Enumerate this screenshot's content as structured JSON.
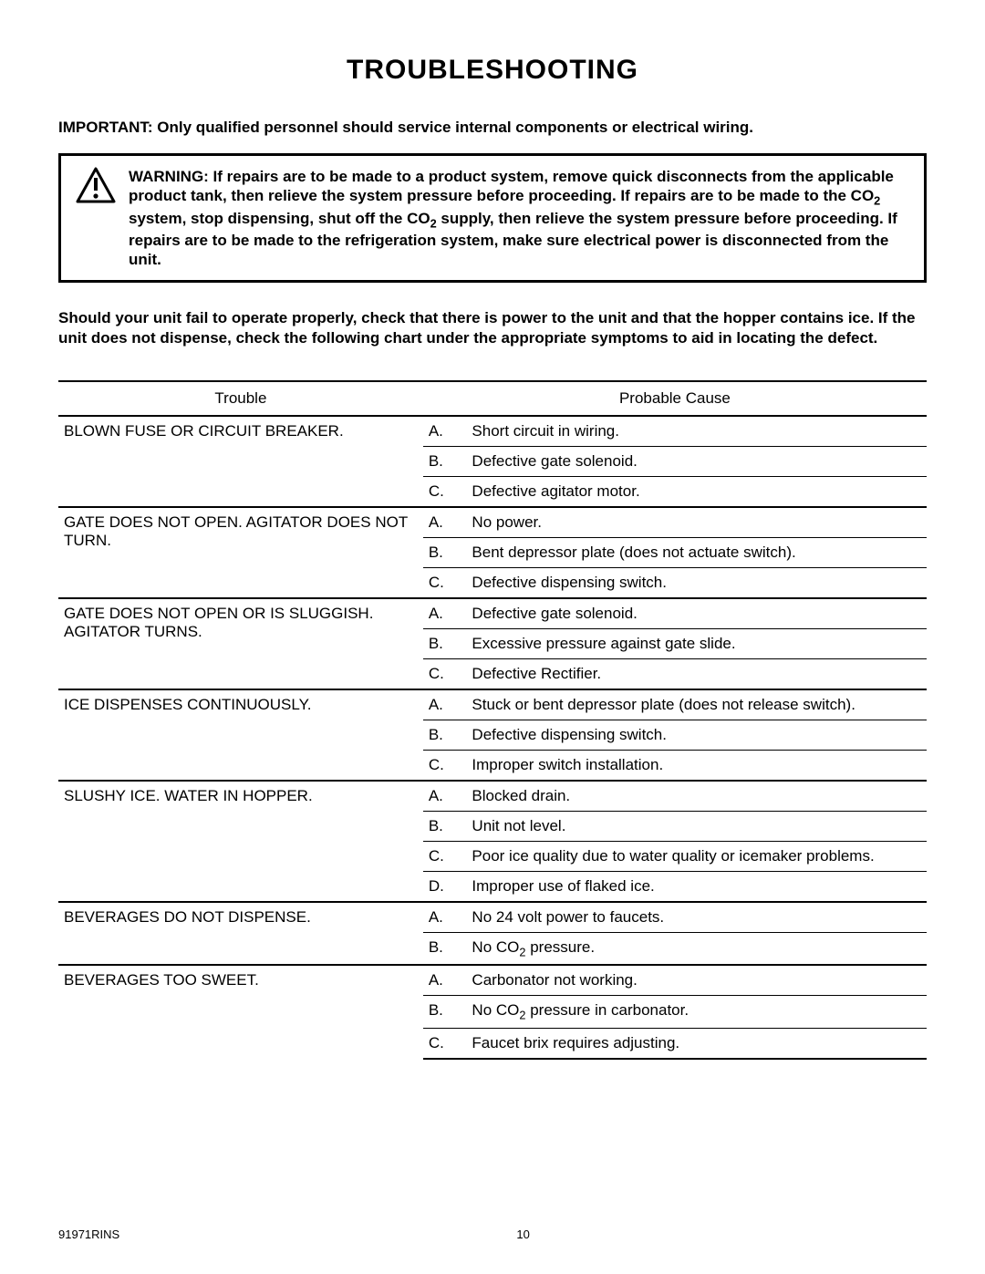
{
  "title": "TROUBLESHOOTING",
  "important_prefix": "IMPORTANT:  ",
  "important_text": "Only qualified personnel should service internal components or electrical wiring.",
  "warning_prefix": "WARNING:  ",
  "warning_text_parts": [
    "If repairs are to be made to a product system, remove quick disconnects from the applicable product tank, then relieve the system pressure before proceeding. If repairs are to be made to the CO",
    " system, stop dispensing, shut off the CO",
    " supply, then relieve the system pressure before proceeding. If repairs are to be made to the refrigeration system, make sure electrical power is disconnected from the unit."
  ],
  "body_text": "Should your unit fail to operate properly, check that there is power to the unit and that the hopper contains ice. If the unit does not dispense, check the following chart under the appropriate symptoms to aid in locating the defect.",
  "table": {
    "header_trouble": "Trouble",
    "header_cause": "Probable Cause",
    "groups": [
      {
        "trouble": "BLOWN FUSE OR CIRCUIT BREAKER.",
        "causes": [
          {
            "letter": "A.",
            "text": "Short circuit in wiring."
          },
          {
            "letter": "B.",
            "text": "Defective gate solenoid."
          },
          {
            "letter": "C.",
            "text": "Defective agitator motor."
          }
        ]
      },
      {
        "trouble": "GATE DOES NOT OPEN.  AGITATOR DOES NOT TURN.",
        "trouble_two_line": true,
        "causes": [
          {
            "letter": "A.",
            "text": "No power."
          },
          {
            "letter": "B.",
            "text": "Bent depressor plate (does not actuate switch)."
          },
          {
            "letter": "C.",
            "text": "Defective dispensing switch."
          }
        ]
      },
      {
        "trouble": "GATE DOES NOT OPEN OR IS SLUGGISH. AGITATOR TURNS.",
        "trouble_two_line": true,
        "causes": [
          {
            "letter": "A.",
            "text": "Defective gate solenoid."
          },
          {
            "letter": "B.",
            "text": "Excessive pressure against gate slide."
          },
          {
            "letter": "C.",
            "text": "Defective  Rectifier."
          }
        ]
      },
      {
        "trouble": "ICE DISPENSES CONTINUOUSLY.",
        "causes": [
          {
            "letter": "A.",
            "text": "Stuck or bent depressor plate (does not release switch)."
          },
          {
            "letter": "B.",
            "text": "Defective dispensing switch."
          },
          {
            "letter": "C.",
            "text": "Improper switch installation."
          }
        ]
      },
      {
        "trouble": "SLUSHY ICE.  WATER IN HOPPER.",
        "causes": [
          {
            "letter": "A.",
            "text": "Blocked drain."
          },
          {
            "letter": "B.",
            "text": "Unit not level."
          },
          {
            "letter": "C.",
            "text": "Poor ice quality due to water quality or icemaker problems."
          },
          {
            "letter": "D.",
            "text": "Improper use of flaked ice."
          }
        ]
      },
      {
        "trouble": "BEVERAGES DO NOT DISPENSE.",
        "causes": [
          {
            "letter": "A.",
            "text": "No 24 volt power to faucets."
          },
          {
            "letter": "B.",
            "text_html": "No CO<sub class=\"sub\">2</sub> pressure."
          }
        ]
      },
      {
        "trouble": "BEVERAGES TOO SWEET.",
        "causes": [
          {
            "letter": "A.",
            "text": "Carbonator not working."
          },
          {
            "letter": "B.",
            "text_html": "No CO<sub class=\"sub\">2</sub> pressure in carbonator."
          },
          {
            "letter": "C.",
            "text": "Faucet brix requires adjusting."
          }
        ]
      }
    ]
  },
  "footer": {
    "doc_id": "91971RINS",
    "page_number": "10"
  }
}
